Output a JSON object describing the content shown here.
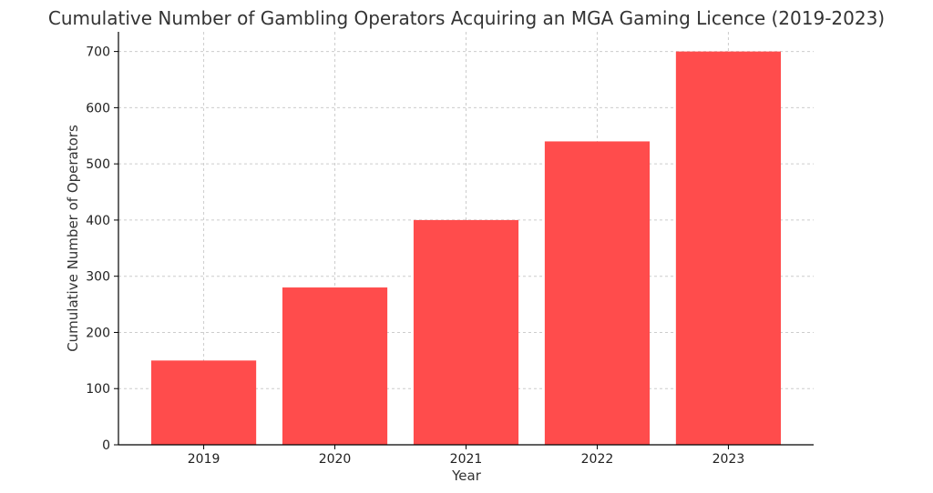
{
  "chart_data": {
    "type": "bar",
    "title": "Cumulative Number of Gambling Operators Acquiring an MGA Gaming Licence (2019-2023)",
    "xlabel": "Year",
    "ylabel": "Cumulative Number of Operators",
    "categories": [
      "2019",
      "2020",
      "2021",
      "2022",
      "2023"
    ],
    "values": [
      150,
      280,
      400,
      540,
      700
    ],
    "ylim": [
      0,
      735
    ],
    "yticks": [
      0,
      100,
      200,
      300,
      400,
      500,
      600,
      700
    ],
    "grid": true,
    "bar_color": "#ff4c4c",
    "legend": null
  }
}
